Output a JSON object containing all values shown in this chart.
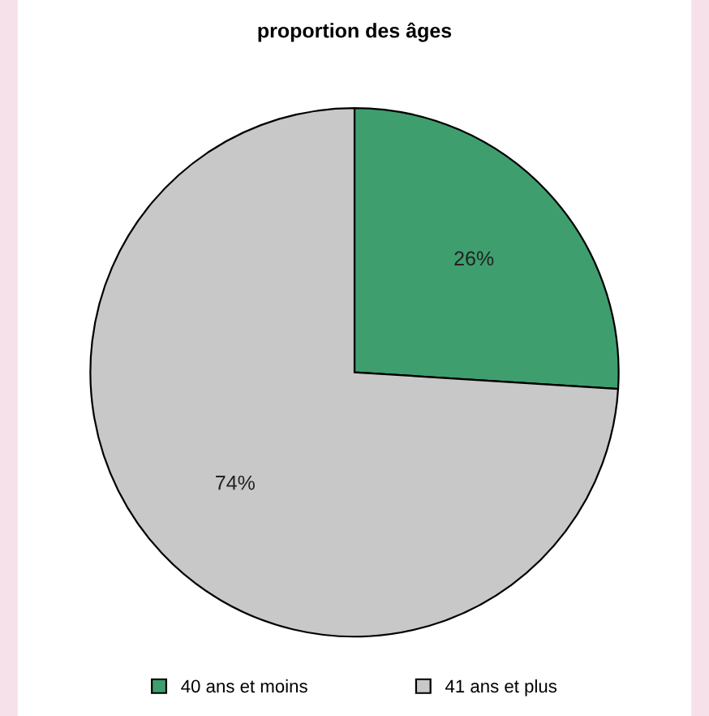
{
  "chart_data": {
    "type": "pie",
    "title": "proportion des âges",
    "categories": [
      "40 ans et moins",
      "41 ans et plus"
    ],
    "values": [
      26,
      74
    ],
    "value_labels": [
      "26%",
      "74%"
    ],
    "colors": [
      "#3f9e6e",
      "#c8c8c8"
    ],
    "legend": "bottom"
  }
}
